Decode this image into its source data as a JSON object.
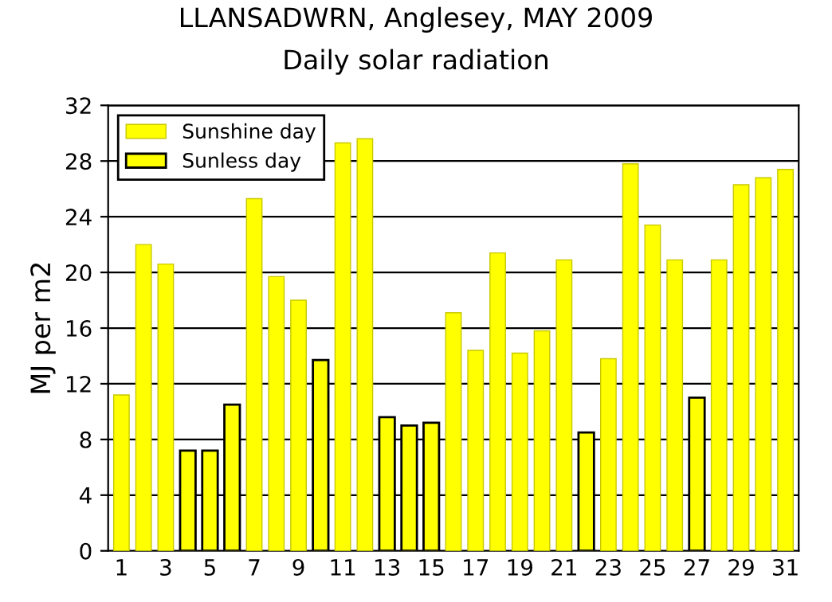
{
  "chart_data": {
    "type": "bar",
    "title": "LLANSADWRN, Anglesey, MAY 2009",
    "subtitle": "Daily solar radiation",
    "ylabel": "MJ per m2",
    "categories": [
      "1",
      null,
      "3",
      null,
      "5",
      null,
      "7",
      null,
      "9",
      null,
      "11",
      null,
      "13",
      null,
      "15",
      null,
      "17",
      null,
      "19",
      null,
      "21",
      null,
      "23",
      null,
      "25",
      null,
      "27",
      null,
      "29",
      null,
      "31"
    ],
    "series": [
      {
        "name": "Sunshine day",
        "color": "#ffff00",
        "values": [
          11.2,
          22.0,
          20.6,
          null,
          null,
          null,
          25.3,
          19.7,
          18.0,
          null,
          29.3,
          29.6,
          null,
          null,
          null,
          17.1,
          14.4,
          21.4,
          14.2,
          15.8,
          20.9,
          null,
          13.8,
          27.8,
          23.4,
          20.9,
          null,
          20.9,
          26.3,
          26.8,
          27.4
        ]
      },
      {
        "name": "Sunless day",
        "color": "#ffff00",
        "values": [
          null,
          null,
          null,
          7.2,
          7.2,
          10.5,
          null,
          null,
          null,
          13.7,
          null,
          null,
          9.6,
          9.0,
          9.2,
          null,
          null,
          null,
          null,
          null,
          null,
          8.5,
          null,
          null,
          null,
          null,
          11.0,
          null,
          null,
          null,
          null
        ]
      }
    ],
    "ylim": [
      0,
      32
    ],
    "yticks": [
      0,
      4,
      8,
      12,
      16,
      20,
      24,
      28,
      32
    ],
    "grid": "y",
    "legend": "top left"
  }
}
